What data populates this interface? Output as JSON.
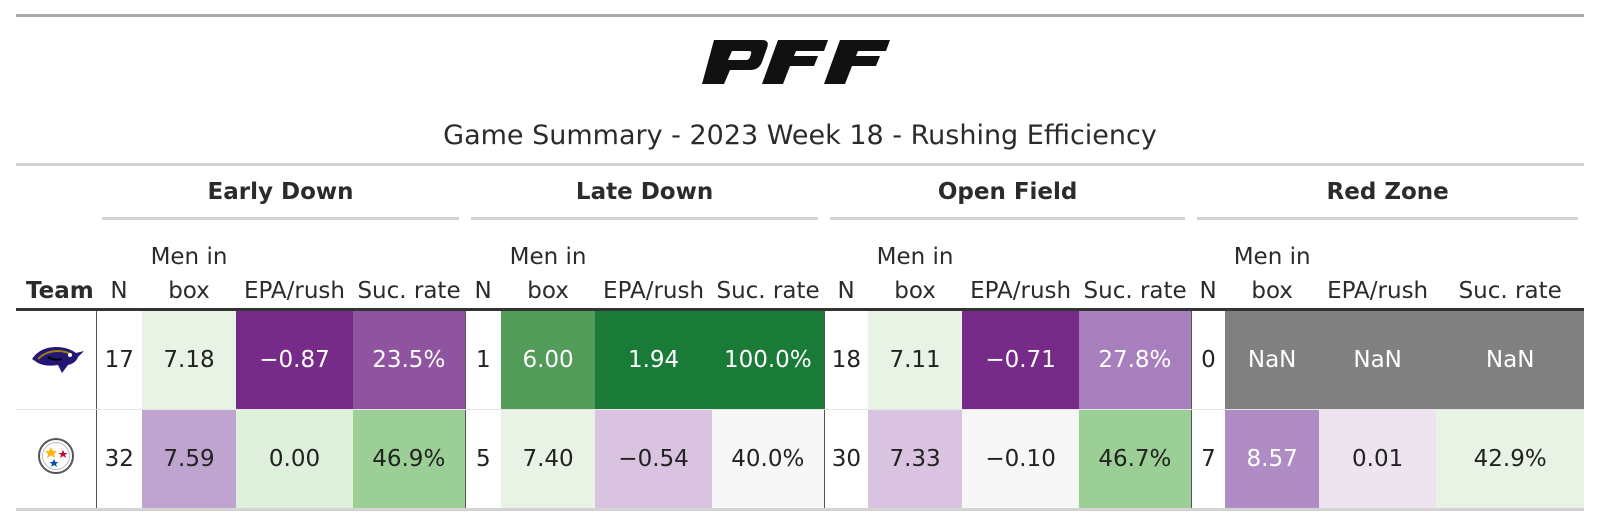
{
  "brand": "PFF",
  "title": "Game Summary - 2023 Week 18 - Rushing Efficiency",
  "groups": {
    "early": "Early Down",
    "late": "Late Down",
    "open": "Open Field",
    "red": "Red Zone"
  },
  "columns": {
    "team": "Team",
    "n": "N",
    "men_line1": "Men in",
    "men_line2": "box",
    "epa": "EPA/rush",
    "suc": "Suc. rate"
  },
  "rows": [
    {
      "team_logo": "ravens-logo",
      "early": {
        "n": "17",
        "men": "7.18",
        "epa": "−0.87",
        "suc": "23.5%"
      },
      "late": {
        "n": "1",
        "men": "6.00",
        "epa": "1.94",
        "suc": "100.0%"
      },
      "open": {
        "n": "18",
        "men": "7.11",
        "epa": "−0.71",
        "suc": "27.8%"
      },
      "red": {
        "n": "0",
        "men": "NaN",
        "epa": "NaN",
        "suc": "NaN"
      },
      "colors": {
        "early": {
          "men": "#e8f3e6",
          "epa": "#772b88",
          "suc": "#8f54a0"
        },
        "late": {
          "men": "#529b58",
          "epa": "#1a7a38",
          "suc": "#1a7a38"
        },
        "open": {
          "men": "#e8f3e6",
          "epa": "#772b88",
          "suc": "#a77fbc"
        },
        "red": {
          "men": "#808080",
          "epa": "#808080",
          "suc": "#808080"
        }
      },
      "text_colors": {
        "early": {
          "men": "#222222",
          "epa": "#ffffff",
          "suc": "#ffffff"
        },
        "late": {
          "men": "#ffffff",
          "epa": "#ffffff",
          "suc": "#ffffff"
        },
        "open": {
          "men": "#222222",
          "epa": "#ffffff",
          "suc": "#ffffff"
        },
        "red": {
          "men": "#ffffff",
          "epa": "#ffffff",
          "suc": "#ffffff"
        }
      }
    },
    {
      "team_logo": "steelers-logo",
      "early": {
        "n": "32",
        "men": "7.59",
        "epa": "0.00",
        "suc": "46.9%"
      },
      "late": {
        "n": "5",
        "men": "7.40",
        "epa": "−0.54",
        "suc": "40.0%"
      },
      "open": {
        "n": "30",
        "men": "7.33",
        "epa": "−0.10",
        "suc": "46.7%"
      },
      "red": {
        "n": "7",
        "men": "8.57",
        "epa": "0.01",
        "suc": "42.9%"
      },
      "colors": {
        "early": {
          "men": "#c0a4d0",
          "epa": "#dff0dc",
          "suc": "#9ccf95"
        },
        "late": {
          "men": "#e8f3e6",
          "epa": "#d9c3e0",
          "suc": "#f7f7f7"
        },
        "open": {
          "men": "#d9c3e0",
          "epa": "#f7f7f7",
          "suc": "#9ccf95"
        },
        "red": {
          "men": "#af8cc4",
          "epa": "#eee4f0",
          "suc": "#e8f3e6"
        }
      },
      "text_colors": {
        "early": {
          "men": "#222222",
          "epa": "#222222",
          "suc": "#222222"
        },
        "late": {
          "men": "#222222",
          "epa": "#222222",
          "suc": "#222222"
        },
        "open": {
          "men": "#222222",
          "epa": "#222222",
          "suc": "#222222"
        },
        "red": {
          "men": "#ffffff",
          "epa": "#222222",
          "suc": "#222222"
        }
      }
    }
  ]
}
